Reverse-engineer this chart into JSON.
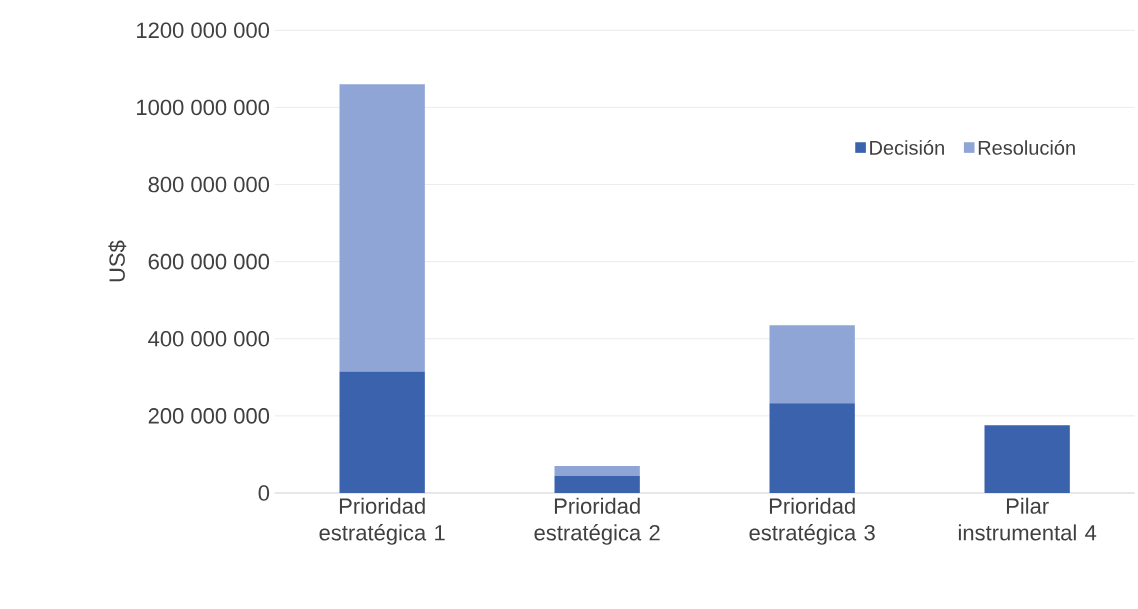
{
  "chart_data": {
    "type": "bar",
    "stacked": true,
    "ylabel": "US$",
    "categories": [
      "Prioridad estratégica 1",
      "Prioridad estratégica 2",
      "Prioridad estratégica 3",
      "Pilar instrumental 4"
    ],
    "series": [
      {
        "name": "Decisión",
        "color": "#3a62ad",
        "values": [
          315000000,
          45000000,
          233000000,
          176000000
        ]
      },
      {
        "name": "Resolución",
        "color": "#8fa5d6",
        "values": [
          745000000,
          25000000,
          202000000,
          null
        ]
      }
    ],
    "ylim": [
      0,
      1200000000
    ],
    "yticks": [
      {
        "value": 0,
        "label": "0"
      },
      {
        "value": 200000000,
        "label": "200 000 000"
      },
      {
        "value": 400000000,
        "label": "400 000 000"
      },
      {
        "value": 600000000,
        "label": "600 000 000"
      },
      {
        "value": 800000000,
        "label": "800 000 000"
      },
      {
        "value": 1000000000,
        "label": "1000 000 000"
      },
      {
        "value": 1200000000,
        "label": "1200 000 000"
      }
    ],
    "grid": "y",
    "legend": "top right"
  }
}
